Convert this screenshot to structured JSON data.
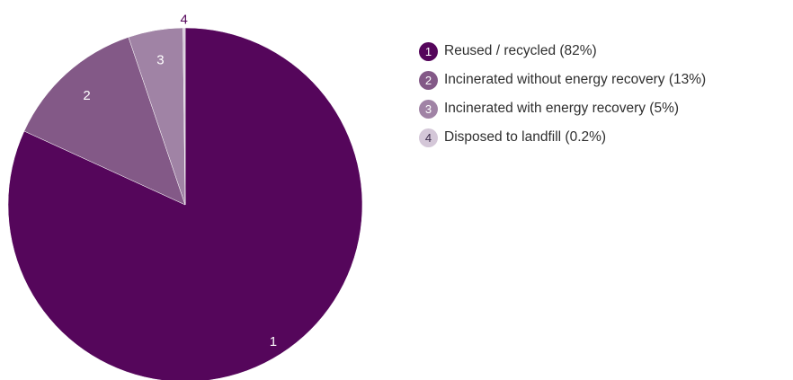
{
  "chart_data": {
    "type": "pie",
    "title": "",
    "slices": [
      {
        "number": "1",
        "legend_label": "Reused / recycled (82%)",
        "value": 82,
        "color": "#55065b",
        "label_color": "#ffffff"
      },
      {
        "number": "2",
        "legend_label": "Incinerated without energy recovery (13%)",
        "value": 13,
        "color": "#835987",
        "label_color": "#ffffff"
      },
      {
        "number": "3",
        "legend_label": "Incinerated with energy recovery (5%)",
        "value": 5,
        "color": "#a083a5",
        "label_color": "#ffffff"
      },
      {
        "number": "4",
        "legend_label": "Disposed to landfill (0.2%)",
        "value": 0.2,
        "color": "#d4c7d8",
        "label_color": "#55065b"
      }
    ],
    "direction": "clockwise from top",
    "legend_position": "right"
  }
}
